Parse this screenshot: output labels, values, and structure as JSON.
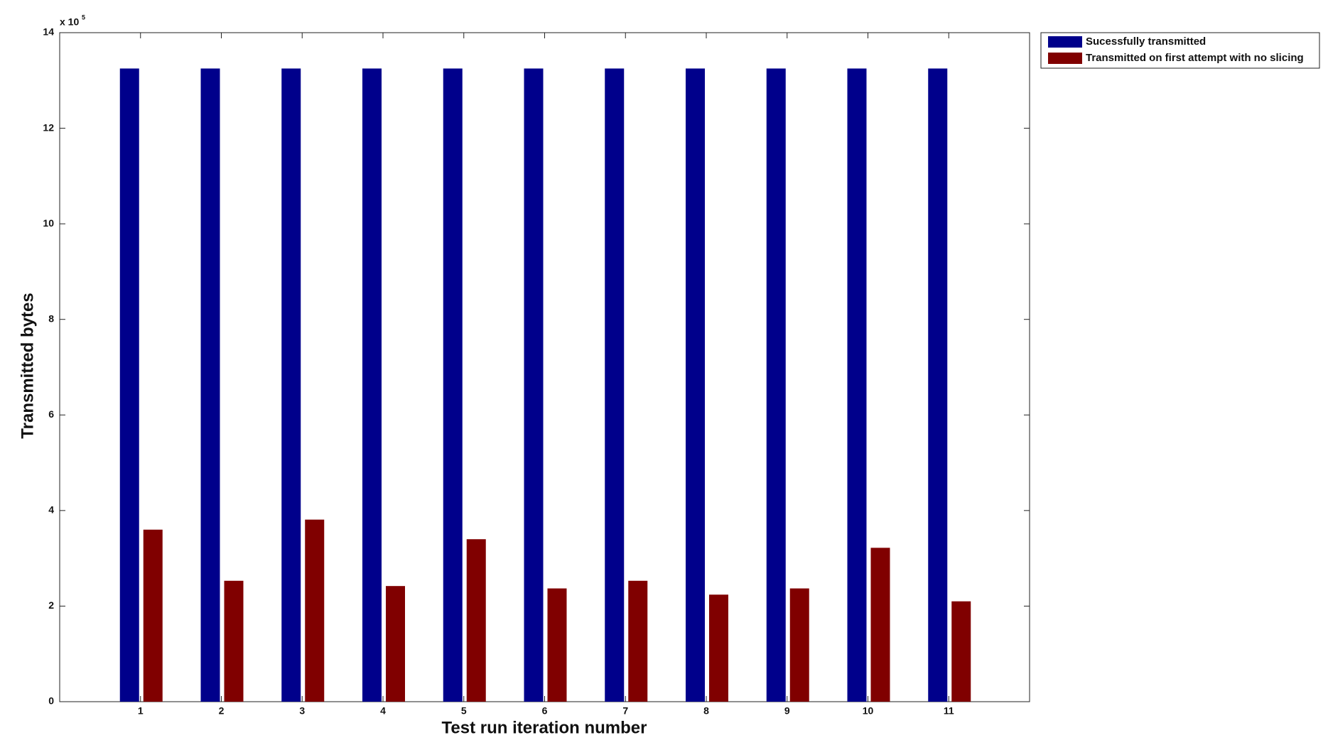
{
  "chart_data": {
    "type": "bar",
    "x_label": "Test run iteration number",
    "y_label": "Transmitted bytes",
    "y_multiplier": {
      "base": "x 10",
      "exponent": "5"
    },
    "categories": [
      "1",
      "2",
      "3",
      "4",
      "5",
      "6",
      "7",
      "8",
      "9",
      "10",
      "11"
    ],
    "series": [
      {
        "name": "Sucessfully transmitted",
        "color": "#00008b",
        "values": [
          13.25,
          13.25,
          13.25,
          13.25,
          13.25,
          13.25,
          13.25,
          13.25,
          13.25,
          13.25,
          13.25
        ]
      },
      {
        "name": "Transmitted on first attempt with no slicing",
        "color": "#800000",
        "values": [
          3.6,
          2.53,
          3.81,
          2.42,
          3.4,
          2.37,
          2.53,
          2.24,
          2.37,
          3.22,
          2.1
        ]
      }
    ],
    "ylim": [
      0,
      14
    ],
    "yticks": [
      0,
      2,
      4,
      6,
      8,
      10,
      12,
      14
    ],
    "grid": false,
    "legend": "outside-top-right"
  }
}
